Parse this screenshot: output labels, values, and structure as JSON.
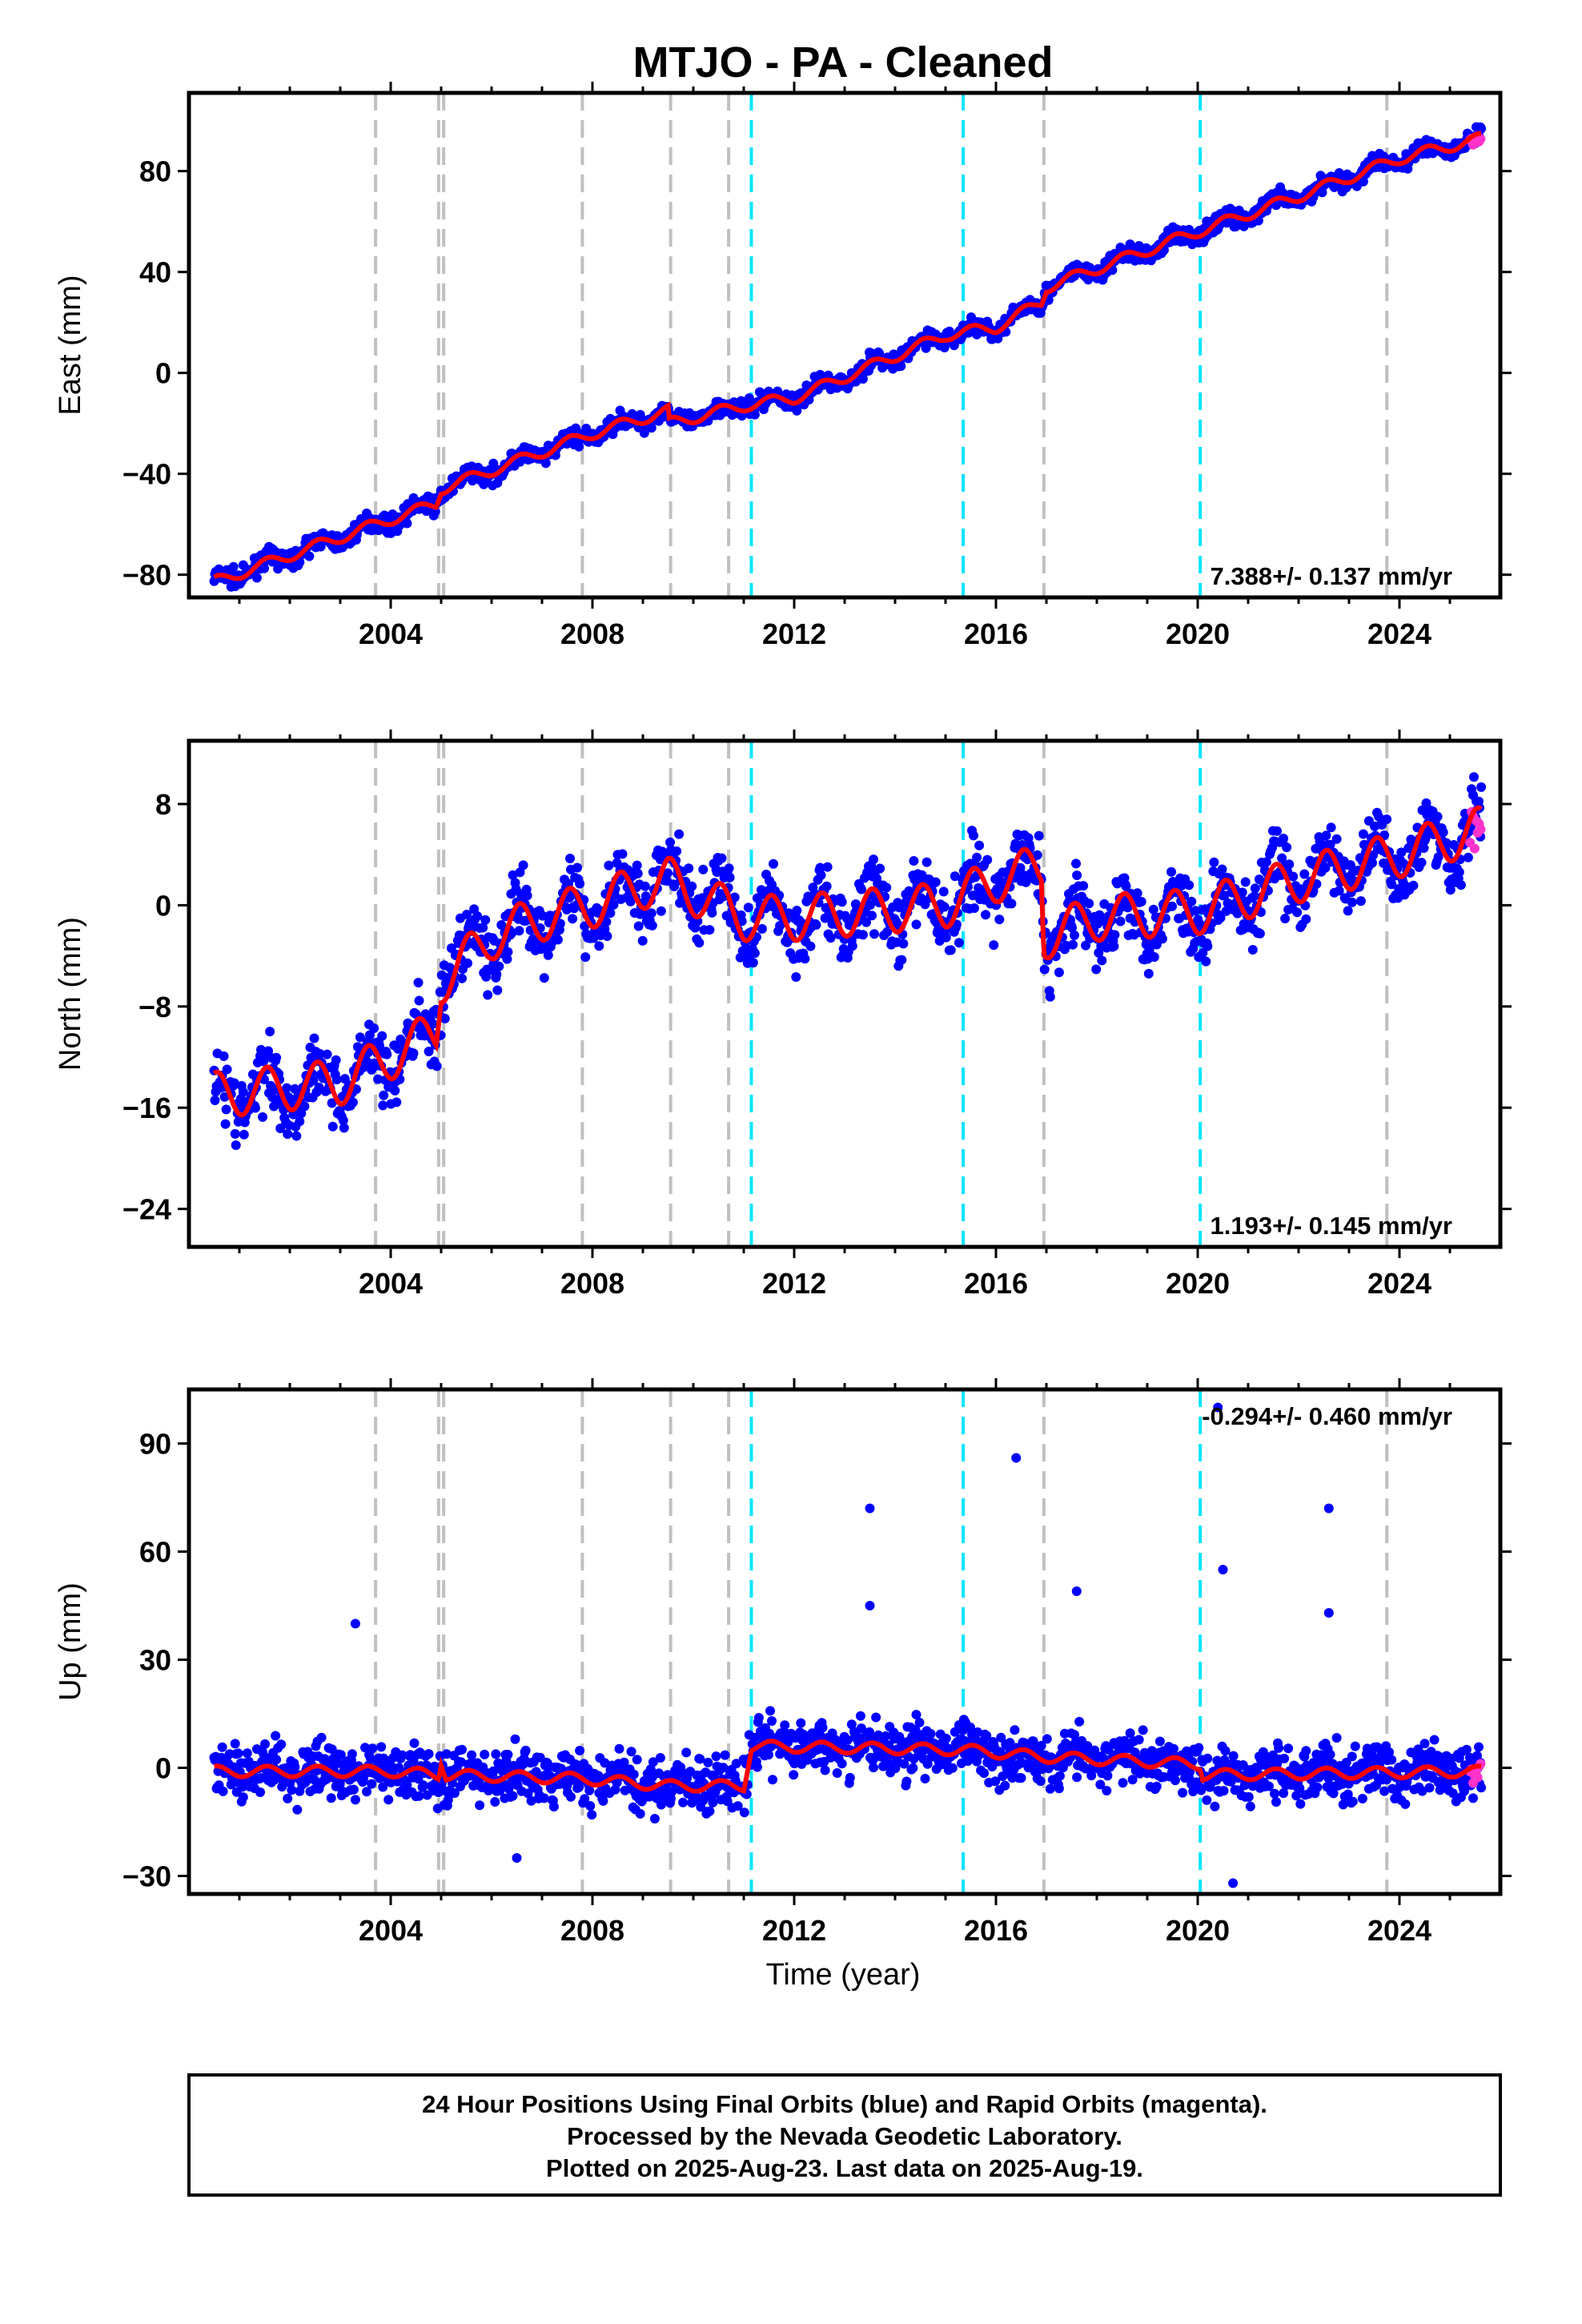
{
  "title": "MTJO  - PA - Cleaned",
  "footer": [
    "24 Hour Positions Using Final Orbits (blue) and Rapid Orbits (magenta).",
    "Processed by the Nevada Geodetic Laboratory.",
    "Plotted on 2025-Aug-23. Last data on 2025-Aug-19."
  ],
  "colors": {
    "final_orbits": "#0000ff",
    "rapid_orbits": "#ff33cc",
    "model": "#ff0000",
    "equipment_change": "#c0c0c0",
    "earthquake": "#00e5ff",
    "frame": "#000000"
  },
  "chart_data": [
    {
      "type": "scatter",
      "panel": "east",
      "ylabel": "East (mm)",
      "xlabel": "",
      "xlim": [
        2000.0,
        2026.0
      ],
      "ylim": [
        -89,
        111
      ],
      "xticks": [
        "2004",
        "2008",
        "2012",
        "2016",
        "2020",
        "2024"
      ],
      "yticks": [
        "-80",
        "-40",
        "0",
        "40",
        "80"
      ],
      "rate_label": "7.388+/- 0.137 mm/yr",
      "data_start": 2000.5,
      "data_end": 2025.63,
      "series": [
        {
          "name": "Final Orbits",
          "color": "blue",
          "daily_positions": true
        },
        {
          "name": "Rapid Orbits",
          "color": "magenta",
          "x_range": [
            2025.4,
            2025.63
          ]
        },
        {
          "name": "Model",
          "color": "red",
          "points": [
            [
              2000.5,
              -83
            ],
            [
              2004,
              -58
            ],
            [
              2004.9,
              -52
            ],
            [
              2005,
              -46
            ],
            [
              2008,
              -24
            ],
            [
              2009.5,
              -15
            ],
            [
              2009.52,
              -20
            ],
            [
              2011,
              -13
            ],
            [
              2012,
              -10
            ],
            [
              2015,
              15
            ],
            [
              2016,
              18
            ],
            [
              2016.9,
              28
            ],
            [
              2017,
              34
            ],
            [
              2020,
              56
            ],
            [
              2022,
              70
            ],
            [
              2024,
              85
            ],
            [
              2025.63,
              93
            ]
          ]
        }
      ],
      "vertical_lines": {
        "equipment_change": [
          2003.7,
          2004.95,
          2005.05,
          2007.8,
          2009.55,
          2010.7,
          2016.95,
          2023.75
        ],
        "earthquake": [
          2011.15,
          2015.35,
          2020.05
        ]
      }
    },
    {
      "type": "scatter",
      "panel": "north",
      "ylabel": "North (mm)",
      "xlabel": "",
      "xlim": [
        2000.0,
        2026.0
      ],
      "ylim": [
        -27,
        13
      ],
      "xticks": [
        "2004",
        "2008",
        "2012",
        "2016",
        "2020",
        "2024"
      ],
      "yticks": [
        "-24",
        "-16",
        "-8",
        "0",
        "8"
      ],
      "rate_label": "1.193+/- 0.145 mm/yr",
      "data_start": 2000.5,
      "data_end": 2025.63,
      "series": [
        {
          "name": "Final Orbits",
          "color": "blue",
          "daily_positions": true
        },
        {
          "name": "Rapid Orbits",
          "color": "magenta",
          "x_range": [
            2025.4,
            2025.63
          ]
        },
        {
          "name": "Model",
          "color": "red",
          "points": [
            [
              2000.5,
              -15
            ],
            [
              2003,
              -14
            ],
            [
              2004,
              -12
            ],
            [
              2004.9,
              -10
            ],
            [
              2005,
              -6
            ],
            [
              2006,
              -2.5
            ],
            [
              2007,
              -1
            ],
            [
              2008,
              0
            ],
            [
              2009,
              1.5
            ],
            [
              2009.5,
              2
            ],
            [
              2010.5,
              0
            ],
            [
              2011,
              -1
            ],
            [
              2012,
              -1
            ],
            [
              2015,
              0
            ],
            [
              2016,
              2
            ],
            [
              2016.9,
              3
            ],
            [
              2016.95,
              -2.5
            ],
            [
              2018,
              -1
            ],
            [
              2020,
              -0.5
            ],
            [
              2022,
              2
            ],
            [
              2024,
              4
            ],
            [
              2025.63,
              6
            ]
          ]
        }
      ],
      "vertical_lines": {
        "equipment_change": [
          2003.7,
          2004.95,
          2005.05,
          2007.8,
          2009.55,
          2010.7,
          2016.95,
          2023.75
        ],
        "earthquake": [
          2011.15,
          2015.35,
          2020.05
        ]
      }
    },
    {
      "type": "scatter",
      "panel": "up",
      "ylabel": "Up (mm)",
      "xlabel": "Time (year)",
      "xlim": [
        2000.0,
        2026.0
      ],
      "ylim": [
        -35,
        105
      ],
      "xticks": [
        "2004",
        "2008",
        "2012",
        "2016",
        "2020",
        "2024"
      ],
      "yticks": [
        "-30",
        "0",
        "30",
        "60",
        "90"
      ],
      "rate_label": "-0.294+/- 0.460 mm/yr",
      "data_start": 2000.5,
      "data_end": 2025.63,
      "series": [
        {
          "name": "Final Orbits",
          "color": "blue",
          "daily_positions": true,
          "outliers": [
            [
              2003.3,
              40
            ],
            [
              2013.5,
              72
            ],
            [
              2013.5,
              45
            ],
            [
              2016.4,
              86
            ],
            [
              2017.6,
              49
            ],
            [
              2020.4,
              100
            ],
            [
              2020.5,
              55
            ],
            [
              2022.6,
              72
            ],
            [
              2022.6,
              43
            ],
            [
              2020.7,
              -32
            ],
            [
              2006.5,
              -25
            ]
          ]
        },
        {
          "name": "Rapid Orbits",
          "color": "magenta",
          "x_range": [
            2025.4,
            2025.63
          ]
        },
        {
          "name": "Model",
          "color": "red",
          "points": [
            [
              2000.5,
              -1
            ],
            [
              2004,
              -1
            ],
            [
              2004.95,
              -2
            ],
            [
              2005,
              2
            ],
            [
              2005.1,
              -2
            ],
            [
              2007.8,
              -3
            ],
            [
              2009.5,
              -5
            ],
            [
              2011,
              -5
            ],
            [
              2011.15,
              6
            ],
            [
              2015.35,
              5
            ],
            [
              2017,
              3
            ],
            [
              2020.05,
              1
            ],
            [
              2020.1,
              -2
            ],
            [
              2025.63,
              -1
            ]
          ]
        }
      ],
      "vertical_lines": {
        "equipment_change": [
          2003.7,
          2004.95,
          2005.05,
          2007.8,
          2009.55,
          2010.7,
          2016.95,
          2023.75
        ],
        "earthquake": [
          2011.15,
          2015.35,
          2020.05
        ]
      }
    }
  ]
}
